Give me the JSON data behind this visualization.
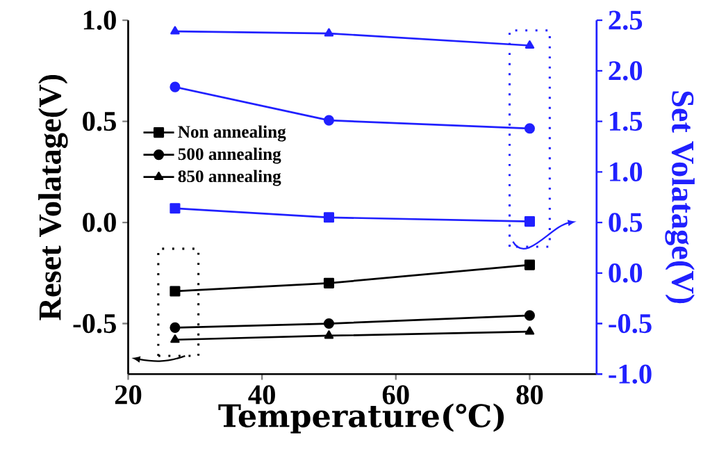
{
  "chart_data": {
    "type": "line",
    "xlabel": "Temperature(℃)",
    "ylabel": "Reset Volatage(V)",
    "y2label": "Set Volatage(V)",
    "xlim": [
      20,
      90
    ],
    "xticks": [
      20,
      40,
      60,
      80
    ],
    "ylim": [
      -0.75,
      1.0
    ],
    "yticks": [
      -0.5,
      {
        "value": 0,
        "label": "0.0"
      },
      0.5,
      {
        "value": 1,
        "label": "1.0"
      }
    ],
    "y2lim": [
      -1.0,
      2.5
    ],
    "y2ticks": [
      {
        "value": -1,
        "label": "-1.0"
      },
      -0.5,
      {
        "value": 0,
        "label": "0.0"
      },
      0.5,
      {
        "value": 1,
        "label": "1.0"
      },
      1.5,
      {
        "value": 2,
        "label": "2.0"
      },
      2.5
    ],
    "x": [
      27,
      50,
      80
    ],
    "legend": "left",
    "series": [
      {
        "name": "Non annealing",
        "color": "#000000",
        "marker": "square",
        "values": [
          -0.34,
          -0.3,
          -0.21
        ]
      },
      {
        "name": "500 annealing",
        "color": "#000000",
        "marker": "circle",
        "values": [
          -0.52,
          -0.5,
          -0.46
        ]
      },
      {
        "name": "850 annealing",
        "color": "#000000",
        "marker": "triangle",
        "values": [
          -0.58,
          -0.56,
          -0.54
        ]
      },
      {
        "color": "#2020ff",
        "marker": "triangle",
        "axis": "y2",
        "values": [
          2.39,
          2.37,
          2.25
        ]
      },
      {
        "color": "#2020ff",
        "marker": "circle",
        "axis": "y2",
        "values": [
          1.84,
          1.51,
          1.43
        ]
      },
      {
        "color": "#2020ff",
        "marker": "square",
        "axis": "y2",
        "values": [
          0.64,
          0.55,
          0.51
        ]
      }
    ]
  }
}
